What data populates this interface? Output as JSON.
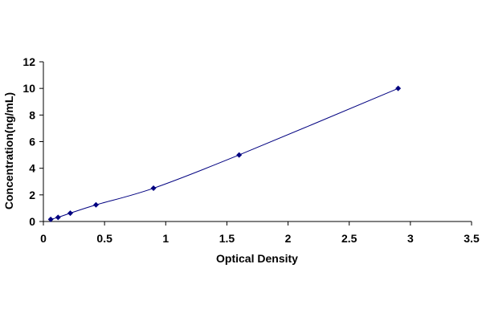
{
  "chart_data": {
    "type": "scatter",
    "title": "",
    "xlabel": "Optical Density",
    "ylabel": "Concentration(ng/mL)",
    "xlim": [
      0,
      3.5
    ],
    "ylim": [
      0,
      12
    ],
    "xticks": [
      "0",
      "0.5",
      "1",
      "1.5",
      "2",
      "2.5",
      "3",
      "3.5"
    ],
    "yticks": [
      "0",
      "2",
      "4",
      "6",
      "8",
      "10",
      "12"
    ],
    "grid": false,
    "legend": "none",
    "series": [
      {
        "x": [
          0.06,
          0.12,
          0.22,
          0.43,
          0.9,
          1.6,
          2.9
        ],
        "y": [
          0.156,
          0.312,
          0.625,
          1.25,
          2.5,
          5,
          10
        ],
        "marker": "diamond",
        "color": "#000080",
        "fit_line": true
      }
    ]
  }
}
